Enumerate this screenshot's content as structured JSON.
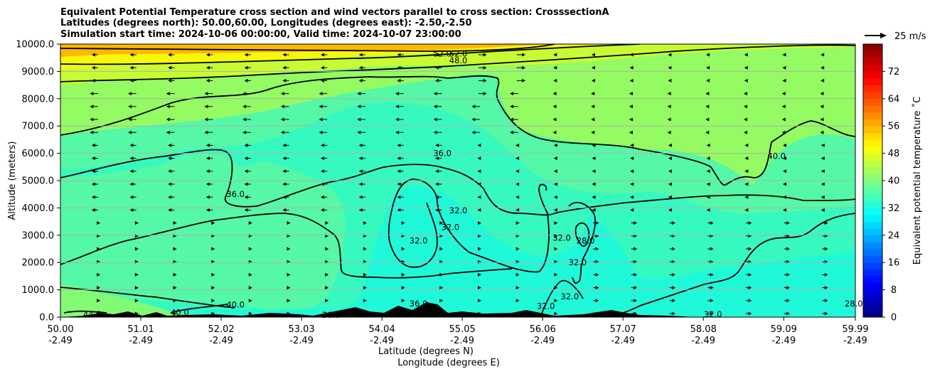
{
  "chart_data": {
    "type": "heatmap",
    "title_lines": [
      "Equivalent Potential Temperature cross section and wind vectors parallel to cross section: CrosssectionA",
      "Latitudes (degrees north): 50.00,60.00, Longitudes (degrees east): -2.50,-2.50",
      "Simulation start time: 2024-10-06 00:00:00, Valid time: 2024-10-07 23:00:00"
    ],
    "xlabel": "Latitude (degrees N)",
    "xlabel2": "Longitude (degrees E)",
    "ylabel": "Altitude (meters)",
    "colorbar_label": "Equivalent potential temperature ˚C",
    "wind_key_label": "25 m/s",
    "x_ticks": [
      {
        "lat": "50.00",
        "lon": "-2.49"
      },
      {
        "lat": "51.01",
        "lon": "-2.49"
      },
      {
        "lat": "52.02",
        "lon": "-2.49"
      },
      {
        "lat": "53.03",
        "lon": "-2.49"
      },
      {
        "lat": "54.04",
        "lon": "-2.49"
      },
      {
        "lat": "55.05",
        "lon": "-2.49"
      },
      {
        "lat": "56.06",
        "lon": "-2.49"
      },
      {
        "lat": "57.07",
        "lon": "-2.49"
      },
      {
        "lat": "58.08",
        "lon": "-2.49"
      },
      {
        "lat": "59.09",
        "lon": "-2.49"
      },
      {
        "lat": "59.99",
        "lon": "-2.49"
      }
    ],
    "y_ticks": [
      "0.0",
      "1000.0",
      "2000.0",
      "3000.0",
      "4000.0",
      "5000.0",
      "6000.0",
      "7000.0",
      "8000.0",
      "9000.0",
      "10000.0"
    ],
    "ylim": [
      0,
      10000
    ],
    "colorbar_ticks": [
      "0",
      "8",
      "16",
      "24",
      "32",
      "40",
      "48",
      "56",
      "64",
      "72"
    ],
    "colorbar_range": [
      0,
      80
    ],
    "grid": "horizontal",
    "contour_labels": [
      {
        "text": "52.0",
        "lat": 54.8,
        "alt": 9650
      },
      {
        "text": "52.0",
        "lat": 55.0,
        "alt": 9650
      },
      {
        "text": "48.0",
        "lat": 55.0,
        "alt": 9400
      },
      {
        "text": "36.0",
        "lat": 54.8,
        "alt": 6000
      },
      {
        "text": "36.0",
        "lat": 52.2,
        "alt": 4500
      },
      {
        "text": "32.0",
        "lat": 55.0,
        "alt": 3900
      },
      {
        "text": "32.0",
        "lat": 54.9,
        "alt": 3300
      },
      {
        "text": "32.0",
        "lat": 54.5,
        "alt": 2800
      },
      {
        "text": "40.0",
        "lat": 59.0,
        "alt": 5900
      },
      {
        "text": "32.0",
        "lat": 56.3,
        "alt": 2900
      },
      {
        "text": "28.0",
        "lat": 56.6,
        "alt": 2800
      },
      {
        "text": "32.0",
        "lat": 56.5,
        "alt": 2000
      },
      {
        "text": "32.0",
        "lat": 56.1,
        "alt": 400
      },
      {
        "text": "32.0",
        "lat": 56.4,
        "alt": 750
      },
      {
        "text": "32.0",
        "lat": 58.2,
        "alt": 100
      },
      {
        "text": "28.0",
        "lat": 59.97,
        "alt": 500
      },
      {
        "text": "44.0",
        "lat": 50.4,
        "alt": 100
      },
      {
        "text": "40.0",
        "lat": 51.5,
        "alt": 170
      },
      {
        "text": "40.0",
        "lat": 52.2,
        "alt": 450
      },
      {
        "text": "36.0",
        "lat": 53.4,
        "alt": 80
      },
      {
        "text": "36.0",
        "lat": 54.5,
        "alt": 500
      }
    ]
  }
}
